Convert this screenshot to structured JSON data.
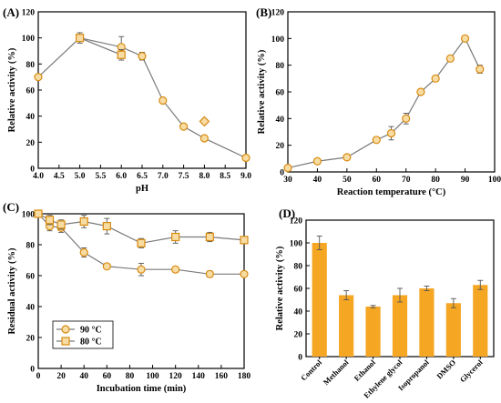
{
  "chart_data": [
    {
      "panel_label": "(A)",
      "type": "line",
      "xlabel": "pH",
      "ylabel": "Relative activity (%)",
      "xlim": [
        4.0,
        9.0
      ],
      "ylim": [
        0,
        120
      ],
      "xticks": [
        "4.0",
        "4.5",
        "5.0",
        "5.5",
        "6.0",
        "6.5",
        "7.0",
        "7.5",
        "8.0",
        "8.5",
        "9.0"
      ],
      "yticks": [
        "0",
        "20",
        "40",
        "60",
        "80",
        "100",
        "120"
      ],
      "series": [
        {
          "marker": "circle",
          "x": [
            4.0,
            5.0,
            6.0,
            6.5,
            7.0,
            7.5,
            8.0,
            9.0
          ],
          "y": [
            70,
            100,
            93,
            86,
            52,
            32,
            23,
            8
          ],
          "err": [
            0,
            0,
            8,
            3,
            0,
            2,
            2,
            0
          ]
        },
        {
          "marker": "square",
          "x": [
            5.0,
            6.0
          ],
          "y": [
            100,
            87
          ],
          "err": [
            4,
            4
          ]
        },
        {
          "marker": "diamond",
          "x": [
            8.0
          ],
          "y": [
            36
          ],
          "err": [
            2
          ]
        }
      ]
    },
    {
      "panel_label": "(B)",
      "type": "line",
      "xlabel": "Reaction temperature (°C)",
      "ylabel": "Relative activity (%)",
      "xlim": [
        30,
        100
      ],
      "ylim": [
        0,
        120
      ],
      "xticks": [
        "30",
        "40",
        "50",
        "60",
        "70",
        "80",
        "90",
        "100"
      ],
      "yticks": [
        "0",
        "20",
        "40",
        "60",
        "80",
        "100",
        "120"
      ],
      "series": [
        {
          "marker": "circle",
          "x": [
            30,
            40,
            50,
            60,
            65,
            70,
            75,
            80,
            85,
            90,
            95
          ],
          "y": [
            3,
            8,
            11,
            24,
            29,
            40,
            60,
            70,
            85,
            100,
            77
          ],
          "err": [
            0,
            1,
            1,
            2,
            5,
            4,
            1,
            1,
            1,
            1,
            3
          ]
        }
      ]
    },
    {
      "panel_label": "(C)",
      "type": "line",
      "xlabel": "Incubation time (min)",
      "ylabel": "Residual activity (%)",
      "xlim": [
        0,
        180
      ],
      "ylim": [
        0,
        100
      ],
      "xticks": [
        "0",
        "20",
        "40",
        "60",
        "80",
        "100",
        "120",
        "140",
        "160",
        "180"
      ],
      "yticks": [
        "0",
        "20",
        "40",
        "60",
        "80",
        "100"
      ],
      "legend_position": "bottom-left",
      "series": [
        {
          "name": "90 °C",
          "marker": "circle",
          "x": [
            0,
            10,
            20,
            40,
            60,
            90,
            120,
            150,
            180
          ],
          "y": [
            100,
            92,
            91,
            75,
            66,
            64,
            64,
            61,
            61
          ],
          "err": [
            0,
            3,
            3,
            3,
            1,
            4,
            1,
            2,
            1
          ]
        },
        {
          "name": "80 °C",
          "marker": "square",
          "x": [
            0,
            10,
            20,
            40,
            60,
            90,
            120,
            150,
            180
          ],
          "y": [
            100,
            96,
            93,
            95,
            92,
            81,
            85,
            85,
            83
          ],
          "err": [
            0,
            3,
            3,
            4,
            5,
            3,
            4,
            3,
            1
          ]
        }
      ]
    },
    {
      "panel_label": "(D)",
      "type": "bar",
      "ylabel": "Relative activity (%)",
      "ylim": [
        0,
        120
      ],
      "yticks": [
        "0",
        "20",
        "40",
        "60",
        "80",
        "100",
        "120"
      ],
      "categories": [
        "Control",
        "Methanol",
        "Ethanol",
        "Ethylene glycol",
        "Isopropanol",
        "DMSO",
        "Glycerol"
      ],
      "values": [
        100,
        54,
        44,
        54,
        60,
        47,
        63
      ],
      "err": [
        6,
        4,
        1,
        6,
        2,
        4,
        4
      ]
    }
  ],
  "colors": {
    "marker_edge": "#d88a10",
    "marker_fill": "#f7dca3",
    "bar": "#f5a623",
    "line": "#7a7a7a"
  }
}
